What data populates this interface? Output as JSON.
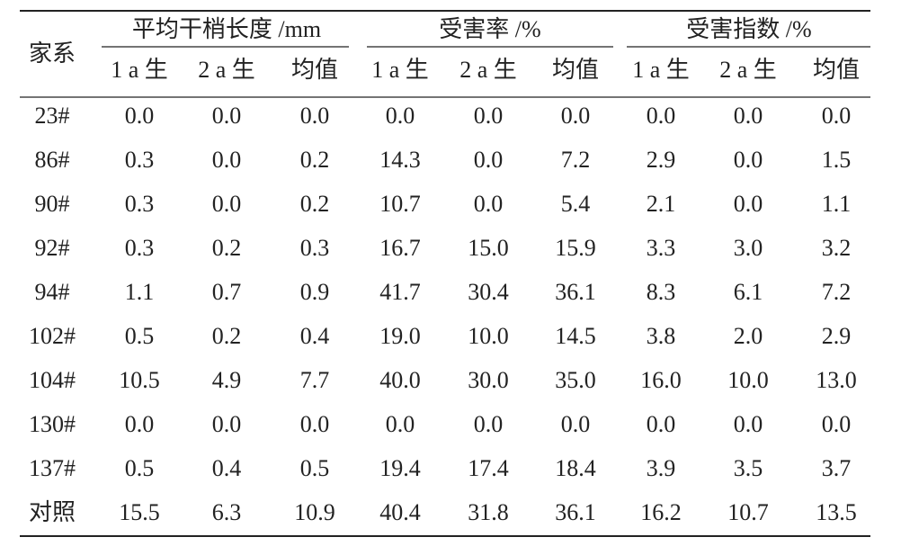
{
  "table": {
    "row_header": "家系",
    "groups": [
      {
        "title": "平均干梢长度 /mm",
        "columns": [
          "1 a 生",
          "2 a 生",
          "均值"
        ]
      },
      {
        "title": "受害率 /%",
        "columns": [
          "1 a 生",
          "2 a 生",
          "均值"
        ]
      },
      {
        "title": "受害指数 /%",
        "columns": [
          "1 a 生",
          "2 a 生",
          "均值"
        ]
      }
    ],
    "rows": [
      [
        "23#",
        "0.0",
        "0.0",
        "0.0",
        "0.0",
        "0.0",
        "0.0",
        "0.0",
        "0.0",
        "0.0"
      ],
      [
        "86#",
        "0.3",
        "0.0",
        "0.2",
        "14.3",
        "0.0",
        "7.2",
        "2.9",
        "0.0",
        "1.5"
      ],
      [
        "90#",
        "0.3",
        "0.0",
        "0.2",
        "10.7",
        "0.0",
        "5.4",
        "2.1",
        "0.0",
        "1.1"
      ],
      [
        "92#",
        "0.3",
        "0.2",
        "0.3",
        "16.7",
        "15.0",
        "15.9",
        "3.3",
        "3.0",
        "3.2"
      ],
      [
        "94#",
        "1.1",
        "0.7",
        "0.9",
        "41.7",
        "30.4",
        "36.1",
        "8.3",
        "6.1",
        "7.2"
      ],
      [
        "102#",
        "0.5",
        "0.2",
        "0.4",
        "19.0",
        "10.0",
        "14.5",
        "3.8",
        "2.0",
        "2.9"
      ],
      [
        "104#",
        "10.5",
        "4.9",
        "7.7",
        "40.0",
        "30.0",
        "35.0",
        "16.0",
        "10.0",
        "13.0"
      ],
      [
        "130#",
        "0.0",
        "0.0",
        "0.0",
        "0.0",
        "0.0",
        "0.0",
        "0.0",
        "0.0",
        "0.0"
      ],
      [
        "137#",
        "0.5",
        "0.4",
        "0.5",
        "19.4",
        "17.4",
        "18.4",
        "3.9",
        "3.5",
        "3.7"
      ],
      [
        "对照",
        "15.5",
        "6.3",
        "10.9",
        "40.4",
        "31.8",
        "36.1",
        "16.2",
        "10.7",
        "13.5"
      ]
    ]
  }
}
